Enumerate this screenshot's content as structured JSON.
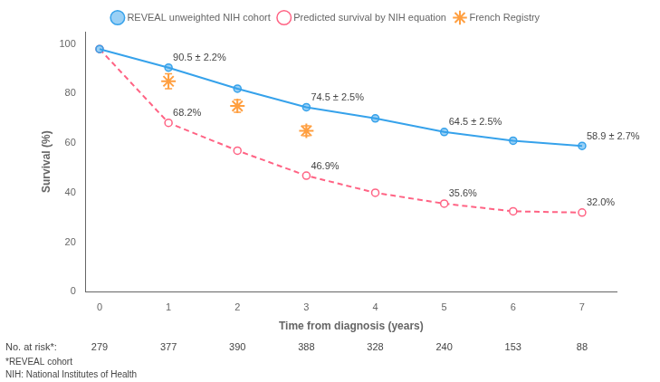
{
  "chart_data": {
    "type": "line",
    "xlabel": "Time from diagnosis (years)",
    "ylabel": "Survival (%)",
    "xlim": [
      -0.2,
      7.5
    ],
    "ylim": [
      0,
      105
    ],
    "xticks": [
      0,
      1,
      2,
      3,
      4,
      5,
      6,
      7
    ],
    "yticks": [
      0,
      20,
      40,
      60,
      80,
      100
    ],
    "grid": false,
    "legend": "top",
    "series": [
      {
        "name": "REVEAL unweighted NIH cohort",
        "marker": "circle",
        "line_style": "solid",
        "x": [
          0,
          1,
          2,
          3,
          4,
          5,
          6,
          7
        ],
        "values": [
          98,
          90.5,
          82,
          74.5,
          70,
          64.5,
          61,
          58.9
        ]
      },
      {
        "name": "Predicted survival by NIH equation",
        "marker": "open_circle",
        "line_style": "dashed",
        "x": [
          0,
          1,
          2,
          3,
          4,
          5,
          6,
          7
        ],
        "values": [
          98,
          68.2,
          57,
          46.9,
          40,
          35.6,
          32.5,
          32.0
        ]
      },
      {
        "name": "French Registry",
        "marker": "star",
        "line_style": "none",
        "x": [
          1,
          2,
          3
        ],
        "values": [
          85,
          75,
          65
        ],
        "errors": [
          3,
          2.5,
          2
        ]
      }
    ],
    "annotations": [
      {
        "x": 1,
        "y": 90.5,
        "text": "90.5 ± 2.2%"
      },
      {
        "x": 3,
        "y": 74.5,
        "text": "74.5 ± 2.5%"
      },
      {
        "x": 5,
        "y": 64.5,
        "text": "64.5 ± 2.5%"
      },
      {
        "x": 7,
        "y": 58.9,
        "text": "58.9 ± 2.7%"
      },
      {
        "x": 1,
        "y": 68.2,
        "text": "68.2%"
      },
      {
        "x": 3,
        "y": 46.9,
        "text": "46.9%"
      },
      {
        "x": 5,
        "y": 35.6,
        "text": "35.6%"
      },
      {
        "x": 7,
        "y": 32.0,
        "text": "32.0%"
      }
    ],
    "risk_table": {
      "label": "No. at risk*:",
      "x": [
        0,
        1,
        2,
        3,
        4,
        5,
        6,
        7
      ],
      "values": [
        279,
        377,
        390,
        388,
        328,
        240,
        153,
        88
      ]
    },
    "footnotes": [
      "*REVEAL cohort",
      "NIH: National Institutes of Health"
    ]
  }
}
